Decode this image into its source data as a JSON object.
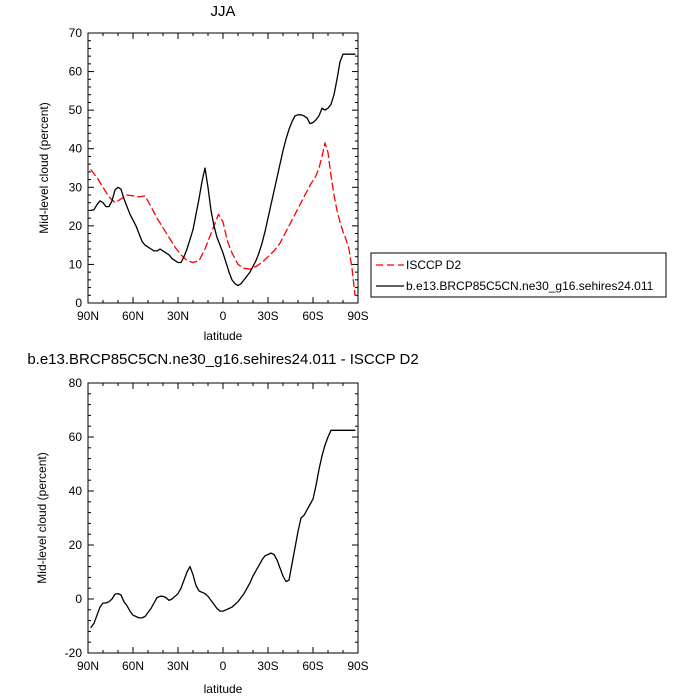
{
  "chart_data": [
    {
      "type": "line",
      "title": "JJA",
      "xlabel": "latitude",
      "ylabel": "Mid-level cloud (percent)",
      "xlim": [
        -90,
        90
      ],
      "ylim": [
        0,
        70
      ],
      "x_ticks": [
        -90,
        -60,
        -30,
        0,
        30,
        60,
        90
      ],
      "x_tick_labels": [
        "90N",
        "60N",
        "30N",
        "0",
        "30S",
        "60S",
        "90S"
      ],
      "y_ticks": [
        0,
        10,
        20,
        30,
        40,
        50,
        60,
        70
      ],
      "y_tick_labels": [
        "0",
        "10",
        "20",
        "30",
        "40",
        "50",
        "60",
        "70"
      ],
      "legend_position": "outside-right",
      "grid": false,
      "series": [
        {
          "name": "ISCCP D2",
          "color": "#ff0000",
          "dash": "dashed",
          "x": [
            -88,
            -84,
            -80,
            -76,
            -72,
            -68,
            -64,
            -60,
            -56,
            -52,
            -48,
            -44,
            -40,
            -36,
            -32,
            -28,
            -24,
            -20,
            -16,
            -12,
            -9,
            -6,
            -3,
            0,
            3,
            6,
            10,
            14,
            18,
            22,
            26,
            30,
            34,
            38,
            42,
            46,
            50,
            54,
            58,
            62,
            64,
            66,
            68,
            70,
            72,
            74,
            76,
            78,
            80,
            82,
            84,
            86,
            88
          ],
          "values": [
            34.5,
            32.5,
            30,
            27.5,
            26,
            27,
            28,
            27.8,
            27.5,
            27.8,
            25,
            22,
            19.5,
            17,
            14.5,
            12.5,
            11,
            10.5,
            11,
            14,
            17,
            20,
            23,
            21,
            16,
            13,
            10,
            9,
            8.8,
            9.5,
            10.5,
            12,
            13.5,
            15.5,
            18.5,
            21.5,
            24.5,
            27.5,
            30.5,
            33,
            35,
            38,
            41.5,
            39,
            33,
            28,
            24,
            21,
            18.5,
            16.5,
            14,
            9,
            2
          ]
        },
        {
          "name": "b.e13.BRCP85C5CN.ne30_g16.sehires24.011",
          "color": "#000000",
          "dash": "solid",
          "x": [
            -88,
            -86,
            -84,
            -82,
            -80,
            -78,
            -76,
            -74,
            -72,
            -70,
            -68,
            -66,
            -64,
            -62,
            -60,
            -58,
            -56,
            -54,
            -52,
            -50,
            -48,
            -46,
            -44,
            -42,
            -40,
            -38,
            -36,
            -34,
            -32,
            -30,
            -28,
            -26,
            -24,
            -22,
            -20,
            -18,
            -16,
            -14,
            -12,
            -10,
            -8,
            -6,
            -4,
            -2,
            0,
            2,
            4,
            6,
            8,
            10,
            12,
            14,
            16,
            18,
            20,
            22,
            24,
            26,
            28,
            30,
            32,
            34,
            36,
            38,
            40,
            42,
            44,
            46,
            48,
            50,
            52,
            54,
            56,
            58,
            60,
            62,
            64,
            66,
            68,
            70,
            72,
            74,
            76,
            78,
            80,
            82,
            84,
            86,
            88
          ],
          "values": [
            24,
            24.2,
            25.5,
            26.5,
            26,
            25,
            25,
            26.5,
            29.3,
            30,
            29.5,
            27,
            25,
            23,
            21.5,
            20,
            18,
            16,
            15,
            14.5,
            14,
            13.5,
            13.5,
            14,
            13.5,
            13,
            12.5,
            11.5,
            11,
            10.5,
            10.5,
            12,
            14,
            16.5,
            19,
            23,
            27,
            31.5,
            35,
            30,
            24,
            20,
            17,
            15,
            13,
            10.5,
            8,
            6,
            5,
            4.5,
            5,
            6,
            7,
            8,
            9.5,
            11,
            13,
            15.5,
            18.5,
            22,
            25.5,
            29,
            32.5,
            36,
            39.5,
            42.5,
            45,
            47,
            48.5,
            48.8,
            48.8,
            48.5,
            48,
            46.5,
            46.8,
            47.5,
            48.5,
            50.5,
            50,
            50.5,
            51.5,
            54,
            58,
            62.5,
            64.5,
            64.5,
            64.5,
            64.5,
            64.5
          ]
        }
      ]
    },
    {
      "type": "line",
      "title": "b.e13.BRCP85C5CN.ne30_g16.sehires24.011 - ISCCP D2",
      "xlabel": "latitude",
      "ylabel": "Mid-level cloud (percent)",
      "xlim": [
        -90,
        90
      ],
      "ylim": [
        -20,
        80
      ],
      "x_ticks": [
        -90,
        -60,
        -30,
        0,
        30,
        60,
        90
      ],
      "x_tick_labels": [
        "90N",
        "60N",
        "30N",
        "0",
        "30S",
        "60S",
        "90S"
      ],
      "y_ticks": [
        -20,
        0,
        20,
        40,
        60,
        80
      ],
      "y_tick_labels": [
        "-20",
        "0",
        "20",
        "40",
        "60",
        "80"
      ],
      "grid": false,
      "series": [
        {
          "color": "#000000",
          "dash": "solid",
          "x": [
            -88,
            -86,
            -84,
            -82,
            -80,
            -78,
            -76,
            -74,
            -72,
            -70,
            -68,
            -66,
            -64,
            -62,
            -60,
            -58,
            -56,
            -54,
            -52,
            -50,
            -48,
            -46,
            -44,
            -42,
            -40,
            -38,
            -36,
            -34,
            -32,
            -30,
            -28,
            -26,
            -24,
            -22,
            -20,
            -18,
            -16,
            -14,
            -12,
            -10,
            -8,
            -6,
            -4,
            -2,
            0,
            2,
            4,
            6,
            8,
            10,
            12,
            14,
            16,
            18,
            20,
            22,
            24,
            26,
            28,
            30,
            32,
            34,
            36,
            38,
            40,
            42,
            44,
            46,
            48,
            50,
            52,
            54,
            56,
            58,
            60,
            62,
            64,
            66,
            68,
            70,
            72,
            74,
            76,
            78,
            80,
            82,
            84,
            86,
            88
          ],
          "values": [
            -10.5,
            -9,
            -6,
            -3,
            -1.5,
            -1.5,
            -1,
            0,
            1.8,
            2,
            1.5,
            -1,
            -2.5,
            -4.5,
            -6,
            -6.5,
            -7,
            -7,
            -6.5,
            -5,
            -3.5,
            -1.5,
            0.5,
            1,
            1,
            0.5,
            -0.5,
            0,
            1,
            2,
            4,
            7,
            10,
            12,
            9,
            5,
            3,
            2.5,
            2,
            1,
            -0.5,
            -2,
            -3.5,
            -4.5,
            -4.5,
            -4,
            -3.5,
            -3,
            -2,
            -1,
            0.5,
            2,
            4,
            6,
            8.5,
            10.5,
            12.5,
            14.5,
            16,
            16.5,
            17,
            16.5,
            14.5,
            11.5,
            8.5,
            6.5,
            7,
            13,
            19,
            25,
            30,
            31,
            33,
            35,
            37,
            42,
            48,
            53,
            57,
            60,
            62.5,
            62.5,
            62.5,
            62.5,
            62.5,
            62.5,
            62.5,
            62.5,
            62.5
          ]
        }
      ]
    }
  ]
}
